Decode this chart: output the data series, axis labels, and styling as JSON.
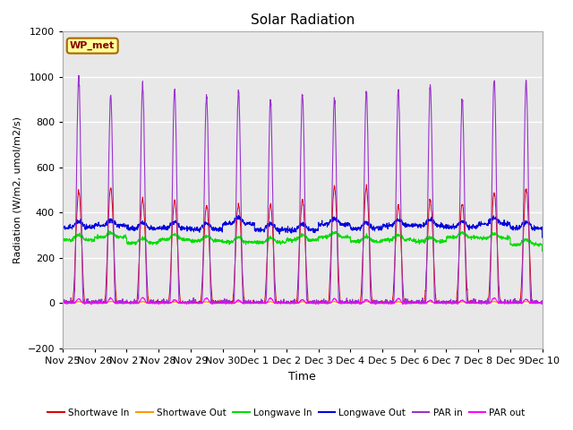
{
  "title": "Solar Radiation",
  "ylabel": "Radiation (W/m2, umol/m2/s)",
  "xlabel": "Time",
  "ylim": [
    -200,
    1200
  ],
  "yticks": [
    -200,
    0,
    200,
    400,
    600,
    800,
    1000,
    1200
  ],
  "num_days": 15,
  "background_color": "#ffffff",
  "plot_bg_color": "#e8e8e8",
  "legend_label": "WP_met",
  "legend_bg": "#ffff99",
  "legend_border": "#aa6600",
  "series": {
    "shortwave_in": {
      "label": "Shortwave In",
      "color": "#dd0000"
    },
    "shortwave_out": {
      "label": "Shortwave Out",
      "color": "#ff9900"
    },
    "longwave_in": {
      "label": "Longwave In",
      "color": "#00dd00"
    },
    "longwave_out": {
      "label": "Longwave Out",
      "color": "#0000dd"
    },
    "par_in": {
      "label": "PAR in",
      "color": "#9933cc"
    },
    "par_out": {
      "label": "PAR out",
      "color": "#ff00ff"
    }
  },
  "xtick_labels": [
    "Nov 25",
    "Nov 26",
    "Nov 27",
    "Nov 28",
    "Nov 29",
    "Nov 30",
    "Dec 1",
    "Dec 2",
    "Dec 3",
    "Dec 4",
    "Dec 5",
    "Dec 6",
    "Dec 7",
    "Dec 8",
    "Dec 9",
    "Dec 10"
  ],
  "num_ticks": 16
}
